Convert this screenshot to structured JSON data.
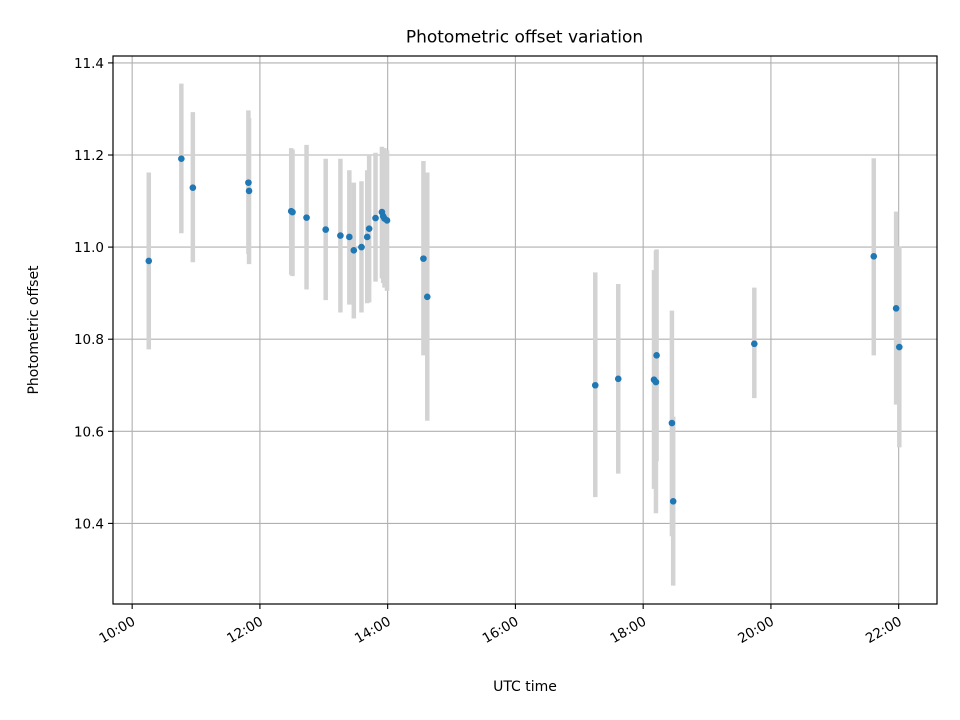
{
  "chart_data": {
    "type": "scatter",
    "title": "Photometric offset variation",
    "xlabel": "UTC time",
    "ylabel": "Photometric offset",
    "x_unit": "hours",
    "xlim": [
      9.7,
      22.6
    ],
    "ylim": [
      10.225,
      11.415
    ],
    "x_ticks": [
      10,
      12,
      14,
      16,
      18,
      20,
      22
    ],
    "x_tick_labels": [
      "10:00",
      "12:00",
      "14:00",
      "16:00",
      "18:00",
      "20:00",
      "22:00"
    ],
    "y_ticks": [
      10.4,
      10.6,
      10.8,
      11.0,
      11.2,
      11.4
    ],
    "y_tick_labels": [
      "10.4",
      "10.6",
      "10.8",
      "11.0",
      "11.2",
      "11.4"
    ],
    "grid": true,
    "colors": {
      "point": "#1f77b4",
      "errorbar": "#d3d3d3",
      "grid": "#b0b0b0"
    },
    "points": [
      {
        "x": 10.26,
        "y": 10.97,
        "lo": 10.778,
        "hi": 11.162
      },
      {
        "x": 10.77,
        "y": 11.192,
        "lo": 11.03,
        "hi": 11.355
      },
      {
        "x": 10.95,
        "y": 11.129,
        "lo": 10.967,
        "hi": 11.293
      },
      {
        "x": 11.82,
        "y": 11.14,
        "lo": 10.985,
        "hi": 11.297
      },
      {
        "x": 11.83,
        "y": 11.122,
        "lo": 10.963,
        "hi": 11.28
      },
      {
        "x": 12.49,
        "y": 11.078,
        "lo": 10.94,
        "hi": 11.215
      },
      {
        "x": 12.51,
        "y": 11.076,
        "lo": 10.937,
        "hi": 11.212
      },
      {
        "x": 12.73,
        "y": 11.064,
        "lo": 10.908,
        "hi": 11.222
      },
      {
        "x": 13.03,
        "y": 11.038,
        "lo": 10.885,
        "hi": 11.192
      },
      {
        "x": 13.26,
        "y": 11.025,
        "lo": 10.858,
        "hi": 11.192
      },
      {
        "x": 13.4,
        "y": 11.022,
        "lo": 10.875,
        "hi": 11.167
      },
      {
        "x": 13.47,
        "y": 10.993,
        "lo": 10.845,
        "hi": 11.14
      },
      {
        "x": 13.59,
        "y": 11.0,
        "lo": 10.858,
        "hi": 11.143
      },
      {
        "x": 13.68,
        "y": 11.022,
        "lo": 10.878,
        "hi": 11.167
      },
      {
        "x": 13.71,
        "y": 11.04,
        "lo": 10.88,
        "hi": 11.2
      },
      {
        "x": 13.81,
        "y": 11.063,
        "lo": 10.925,
        "hi": 11.205
      },
      {
        "x": 13.91,
        "y": 11.076,
        "lo": 10.932,
        "hi": 11.218
      },
      {
        "x": 13.93,
        "y": 11.067,
        "lo": 10.922,
        "hi": 11.212
      },
      {
        "x": 13.95,
        "y": 11.062,
        "lo": 10.912,
        "hi": 11.215
      },
      {
        "x": 13.99,
        "y": 11.058,
        "lo": 10.905,
        "hi": 11.21
      },
      {
        "x": 14.56,
        "y": 10.975,
        "lo": 10.765,
        "hi": 11.187
      },
      {
        "x": 14.62,
        "y": 10.892,
        "lo": 10.623,
        "hi": 11.162
      },
      {
        "x": 17.25,
        "y": 10.7,
        "lo": 10.457,
        "hi": 10.945
      },
      {
        "x": 17.61,
        "y": 10.714,
        "lo": 10.508,
        "hi": 10.92
      },
      {
        "x": 18.17,
        "y": 10.712,
        "lo": 10.475,
        "hi": 10.95
      },
      {
        "x": 18.2,
        "y": 10.707,
        "lo": 10.422,
        "hi": 10.992
      },
      {
        "x": 18.21,
        "y": 10.765,
        "lo": 10.535,
        "hi": 10.995
      },
      {
        "x": 18.45,
        "y": 10.618,
        "lo": 10.372,
        "hi": 10.862
      },
      {
        "x": 18.47,
        "y": 10.448,
        "lo": 10.265,
        "hi": 10.632
      },
      {
        "x": 19.74,
        "y": 10.79,
        "lo": 10.672,
        "hi": 10.912
      },
      {
        "x": 21.61,
        "y": 10.98,
        "lo": 10.765,
        "hi": 11.193
      },
      {
        "x": 21.96,
        "y": 10.867,
        "lo": 10.658,
        "hi": 11.077
      },
      {
        "x": 22.01,
        "y": 10.783,
        "lo": 10.565,
        "hi": 11.002
      }
    ]
  }
}
